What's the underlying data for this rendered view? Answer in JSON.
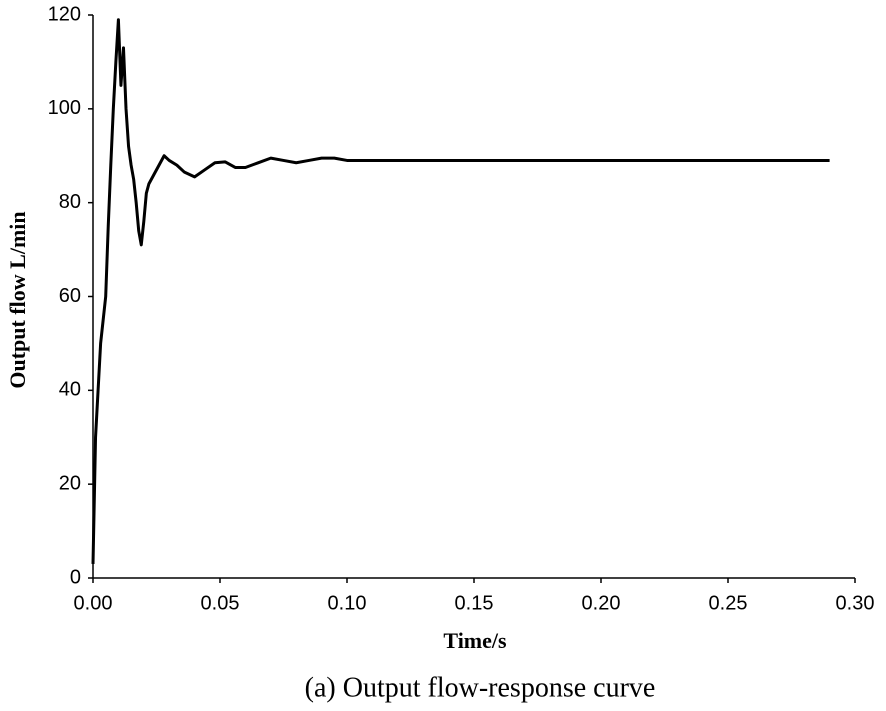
{
  "chart_data": {
    "type": "line",
    "xlabel": "Time/s",
    "ylabel": "Output flow  L/min",
    "caption": "(a) Output flow-response curve",
    "x": [
      0,
      0.001,
      0.002,
      0.003,
      0.004,
      0.005,
      0.006,
      0.007,
      0.008,
      0.009,
      0.01,
      0.011,
      0.012,
      0.013,
      0.014,
      0.015,
      0.016,
      0.017,
      0.018,
      0.019,
      0.02,
      0.021,
      0.022,
      0.024,
      0.026,
      0.028,
      0.03,
      0.033,
      0.036,
      0.04,
      0.044,
      0.048,
      0.052,
      0.056,
      0.06,
      0.065,
      0.07,
      0.075,
      0.08,
      0.085,
      0.09,
      0.095,
      0.1,
      0.11,
      0.2,
      0.29
    ],
    "series": [
      {
        "color": "#000000",
        "values": [
          3,
          30,
          40,
          50,
          55,
          60,
          75,
          88,
          100,
          110,
          119,
          105,
          113,
          100,
          92,
          88,
          85,
          80,
          74,
          71,
          76,
          82,
          84,
          86,
          88,
          90,
          89,
          88,
          86.5,
          85.5,
          87,
          88.5,
          88.7,
          87.5,
          87.5,
          88.5,
          89.5,
          89,
          88.5,
          89,
          89.5,
          89.5,
          89,
          89,
          89,
          89
        ]
      }
    ],
    "xlim": [
      0,
      0.3
    ],
    "ylim": [
      0,
      120
    ],
    "xticks": [
      {
        "value": 0,
        "label": "0.00"
      },
      {
        "value": 0.05,
        "label": "0.05"
      },
      {
        "value": 0.1,
        "label": "0.10"
      },
      {
        "value": 0.15,
        "label": "0.15"
      },
      {
        "value": 0.2,
        "label": "0.20"
      },
      {
        "value": 0.25,
        "label": "0.25"
      },
      {
        "value": 0.3,
        "label": "0.30"
      }
    ],
    "yticks": [
      0,
      20,
      40,
      60,
      80,
      100,
      120
    ]
  }
}
